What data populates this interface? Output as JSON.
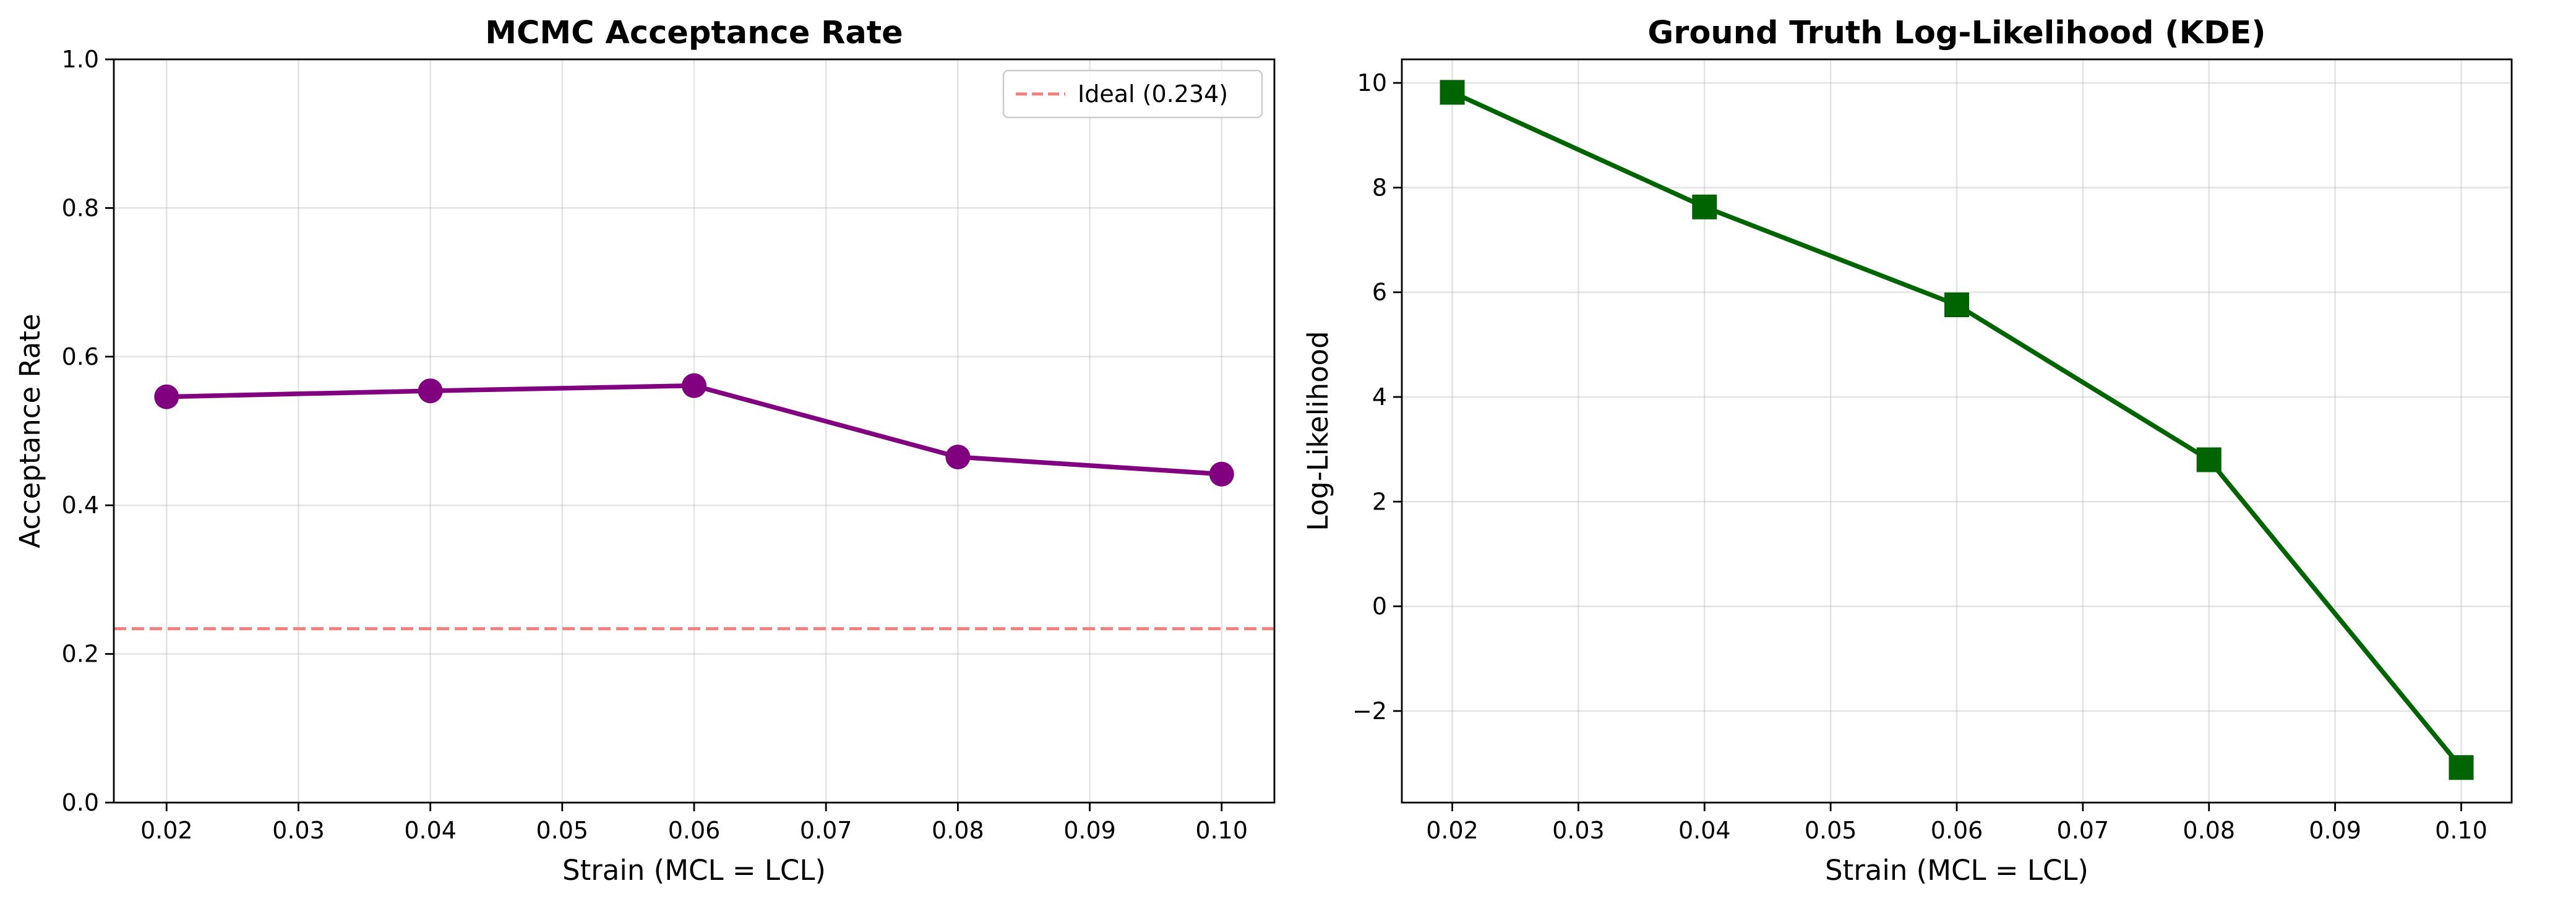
{
  "chart_data": [
    {
      "type": "line",
      "title": "MCMC Acceptance Rate",
      "xlabel": "Strain (MCL = LCL)",
      "ylabel": "Acceptance Rate",
      "xlim": [
        0.016,
        0.104
      ],
      "ylim": [
        0.0,
        1.0
      ],
      "xticks": [
        0.02,
        0.03,
        0.04,
        0.05,
        0.06,
        0.07,
        0.08,
        0.09,
        0.1
      ],
      "xtick_labels": [
        "0.02",
        "0.03",
        "0.04",
        "0.05",
        "0.06",
        "0.07",
        "0.08",
        "0.09",
        "0.10"
      ],
      "yticks": [
        0.0,
        0.2,
        0.4,
        0.6,
        0.8,
        1.0
      ],
      "ytick_labels": [
        "0.0",
        "0.2",
        "0.4",
        "0.6",
        "0.8",
        "1.0"
      ],
      "grid": true,
      "legend_position": "top-right",
      "series": [
        {
          "x": [
            0.02,
            0.04,
            0.06,
            0.08,
            0.1
          ],
          "y": [
            0.546,
            0.554,
            0.561,
            0.465,
            0.442
          ],
          "color": "#800080",
          "marker": "circle"
        }
      ],
      "reference_lines": [
        {
          "name": "Ideal (0.234)",
          "y": 0.234,
          "color": "#f08080",
          "style": "dashed"
        }
      ]
    },
    {
      "type": "line",
      "title": "Ground Truth Log-Likelihood (KDE)",
      "xlabel": "Strain (MCL = LCL)",
      "ylabel": "Log-Likelihood",
      "xlim": [
        0.016,
        0.104
      ],
      "ylim": [
        -3.75,
        10.45
      ],
      "xticks": [
        0.02,
        0.03,
        0.04,
        0.05,
        0.06,
        0.07,
        0.08,
        0.09,
        0.1
      ],
      "xtick_labels": [
        "0.02",
        "0.03",
        "0.04",
        "0.05",
        "0.06",
        "0.07",
        "0.08",
        "0.09",
        "0.10"
      ],
      "yticks": [
        -2,
        0,
        2,
        4,
        6,
        8,
        10
      ],
      "ytick_labels": [
        "−2",
        "0",
        "2",
        "4",
        "6",
        "8",
        "10"
      ],
      "grid": true,
      "series": [
        {
          "x": [
            0.02,
            0.04,
            0.06,
            0.08,
            0.1
          ],
          "y": [
            9.82,
            7.63,
            5.76,
            2.8,
            -3.08
          ],
          "color": "#006400",
          "marker": "square"
        }
      ]
    }
  ]
}
